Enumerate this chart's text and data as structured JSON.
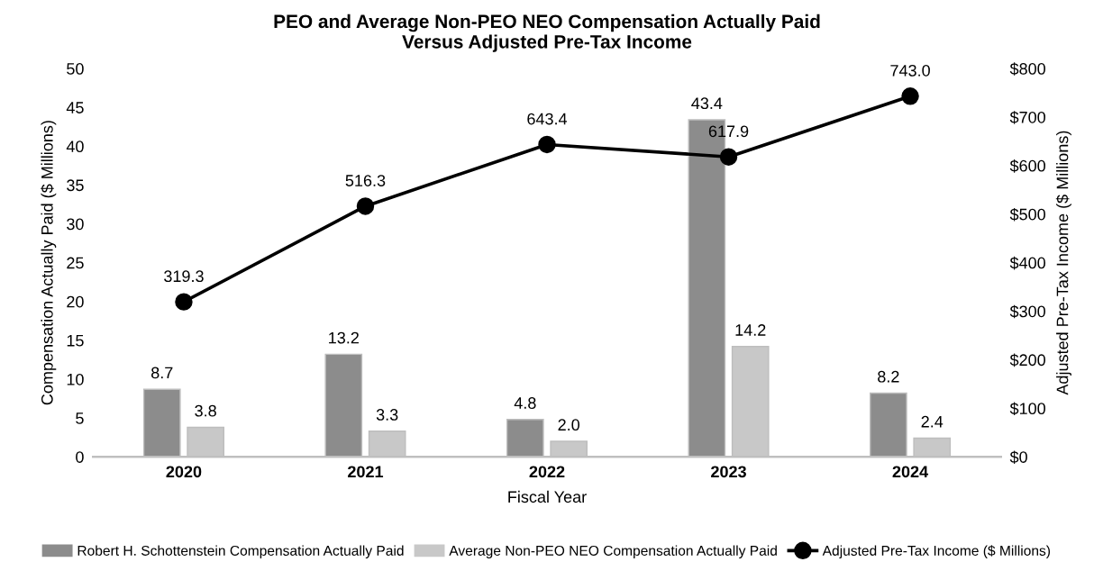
{
  "chart_data": {
    "type": "bar",
    "title": "PEO and Average Non-PEO NEO Compensation Actually Paid\nVersus Adjusted Pre-Tax Income",
    "xlabel": "Fiscal Year",
    "ylabel": "Compensation Actually Paid ($ Millions)",
    "y2label": "Adjusted Pre-Tax Income ($ Millions)",
    "categories": [
      "2020",
      "2021",
      "2022",
      "2023",
      "2024"
    ],
    "series": [
      {
        "name": "Robert H. Schottenstein Compensation Actually Paid",
        "color": "#8c8c8c",
        "values": [
          8.7,
          13.2,
          4.8,
          43.4,
          8.2
        ],
        "value_labels": [
          "8.7",
          "13.2",
          "4.8",
          "43.4",
          "8.2"
        ]
      },
      {
        "name": "Average Non-PEO NEO Compensation Actually Paid",
        "color": "#c8c8c8",
        "values": [
          3.8,
          3.3,
          2.0,
          14.2,
          2.4
        ],
        "value_labels": [
          "3.8",
          "3.3",
          "2.0",
          "14.2",
          "2.4"
        ]
      },
      {
        "name": "Adjusted Pre-Tax Income ($ Millions)",
        "type": "line",
        "axis": "y2",
        "color": "#000000",
        "marker": "circle",
        "values": [
          319.3,
          516.3,
          643.4,
          617.9,
          743.0
        ],
        "value_labels": [
          "319.3",
          "516.3",
          "643.4",
          "617.9",
          "743.0"
        ]
      }
    ],
    "ylim": [
      0,
      50
    ],
    "yticks": [
      0,
      5,
      10,
      15,
      20,
      25,
      30,
      35,
      40,
      45,
      50
    ],
    "y2lim": [
      0,
      800
    ],
    "y2ticks": [
      {
        "value": 0,
        "label": "$0"
      },
      {
        "value": 100,
        "label": "$100"
      },
      {
        "value": 200,
        "label": "$200"
      },
      {
        "value": 300,
        "label": "$300"
      },
      {
        "value": 400,
        "label": "$400"
      },
      {
        "value": 500,
        "label": "$500"
      },
      {
        "value": 600,
        "label": "$600"
      },
      {
        "value": 700,
        "label": "$700"
      },
      {
        "value": 800,
        "label": "$800"
      }
    ],
    "grid": false,
    "legend": "bottom"
  }
}
